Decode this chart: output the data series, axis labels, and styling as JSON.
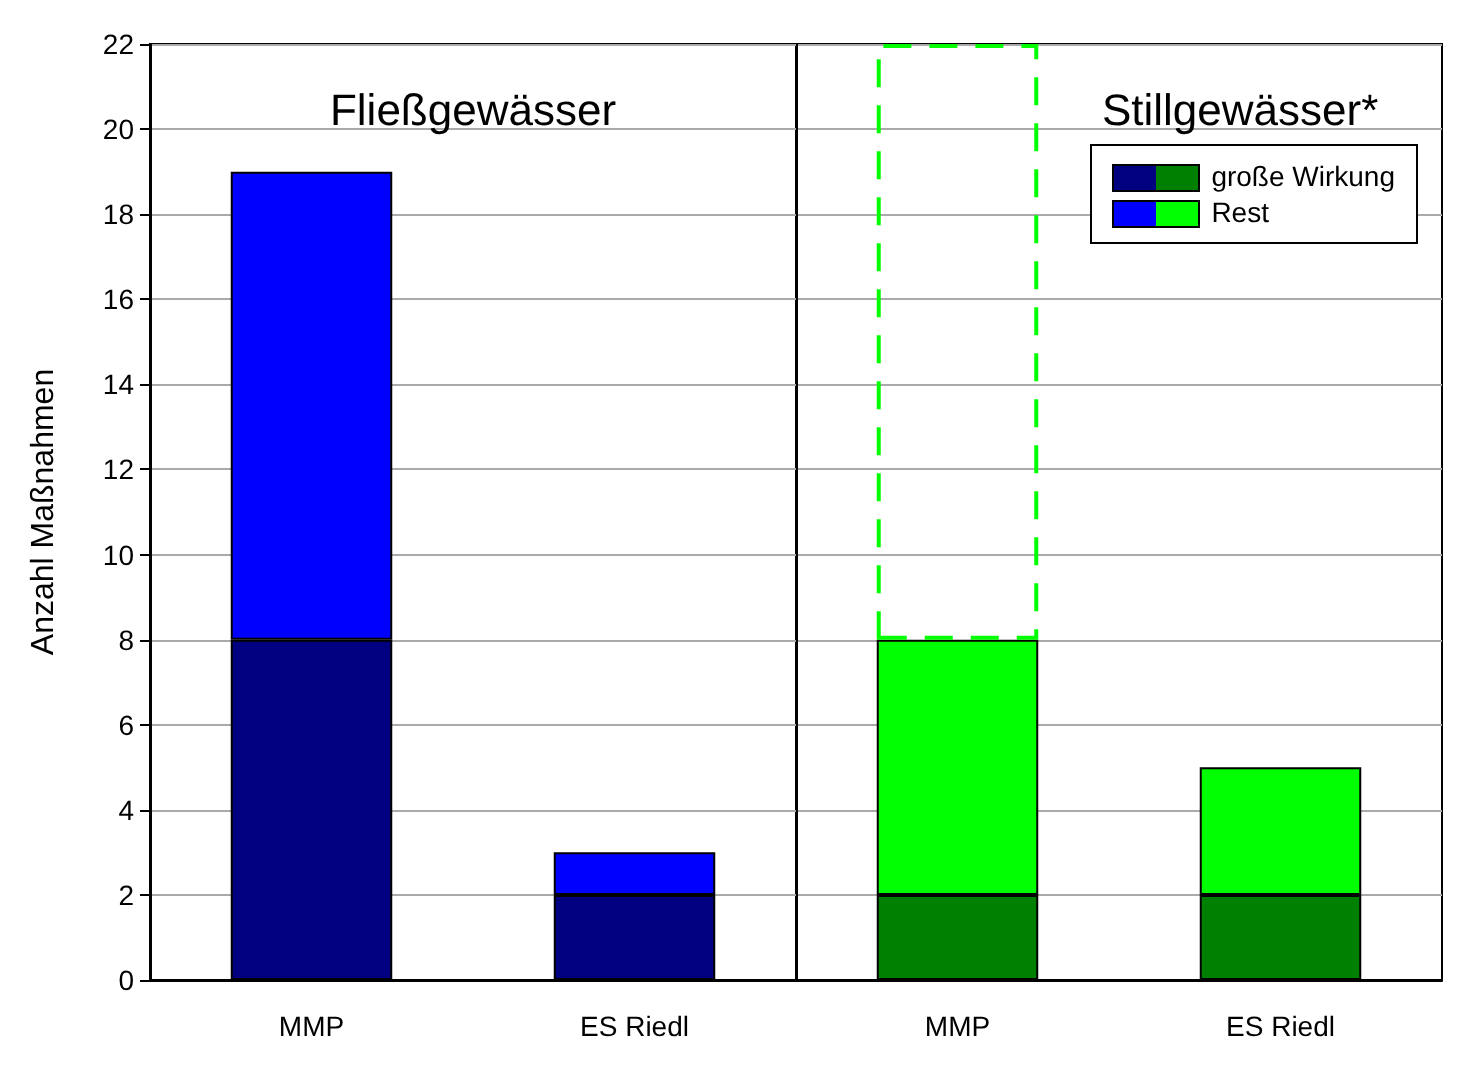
{
  "chart_data": [
    {
      "type": "bar",
      "stacked": true,
      "title": "Fließgewässer",
      "ylabel": "Anzahl Maßnahmen",
      "categories": [
        "MMP",
        "ES Riedl"
      ],
      "series": [
        {
          "color": "#000080",
          "values": [
            8,
            2
          ]
        },
        {
          "color": "#0000ff",
          "values": [
            11,
            1
          ]
        }
      ],
      "ylim": [
        0,
        22
      ],
      "yticks": [
        0,
        2,
        4,
        6,
        8,
        10,
        12,
        14,
        16,
        18,
        20,
        22
      ],
      "grid": "y"
    },
    {
      "type": "bar",
      "stacked": true,
      "title": "Stillgewässer*",
      "categories": [
        "MMP",
        "ES Riedl"
      ],
      "series": [
        {
          "name": "große Wirkung",
          "color": "#008000",
          "values": [
            2,
            2
          ]
        },
        {
          "name": "Rest",
          "color": "#00ff00",
          "values": [
            6,
            3
          ]
        },
        {
          "color": "#00ff00",
          "line_style": "dashed",
          "values": [
            14,
            null
          ]
        }
      ],
      "ylim": [
        0,
        22
      ],
      "yticks": [
        0,
        2,
        4,
        6,
        8,
        10,
        12,
        14,
        16,
        18,
        20,
        22
      ],
      "grid": "y",
      "tick_labels": "x",
      "legend": "top right"
    }
  ]
}
